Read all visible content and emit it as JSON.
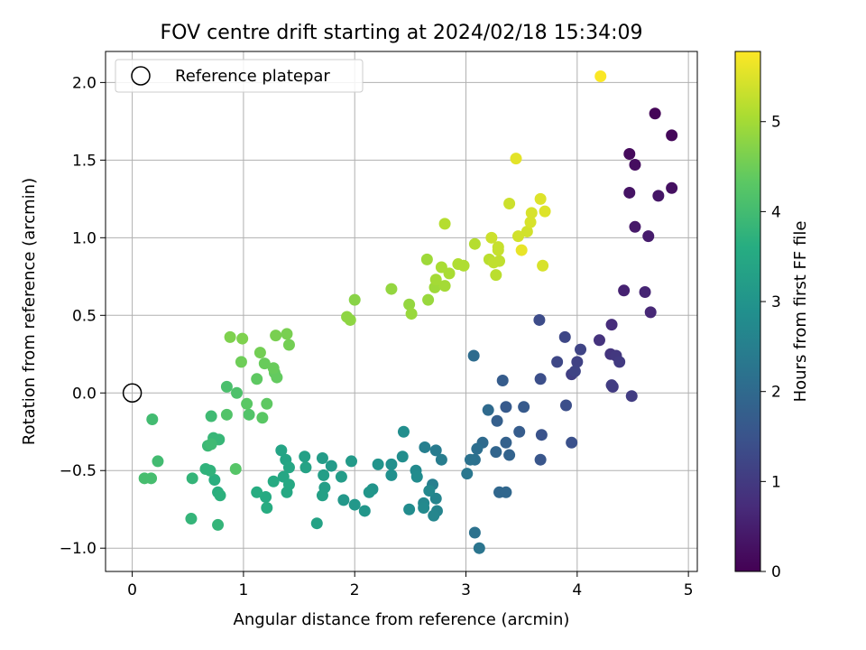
{
  "chart_data": {
    "type": "scatter",
    "title": "FOV centre drift starting at 2024/02/18 15:34:09",
    "xlabel": "Angular distance from reference (arcmin)",
    "ylabel": "Rotation from reference (arcmin)",
    "colorbar_label": "Hours from first FF file",
    "xlim": [
      -0.24,
      5.08
    ],
    "ylim": [
      -1.15,
      2.2
    ],
    "clim": [
      0,
      5.78
    ],
    "x_ticks": [
      0,
      1,
      2,
      3,
      4,
      5
    ],
    "y_ticks": [
      -1.0,
      -0.5,
      0.0,
      0.5,
      1.0,
      1.5,
      2.0
    ],
    "colorbar_ticks": [
      0,
      1,
      2,
      3,
      4,
      5
    ],
    "x_tick_labels": [
      "0",
      "1",
      "2",
      "3",
      "4",
      "5"
    ],
    "y_tick_labels": [
      "−1.0",
      "−0.5",
      "0.0",
      "0.5",
      "1.0",
      "1.5",
      "2.0"
    ],
    "colorbar_tick_labels": [
      "0",
      "1",
      "2",
      "3",
      "4",
      "5"
    ],
    "grid": true,
    "colormap": "viridis",
    "legend": {
      "placement": "upper-left",
      "entries": [
        {
          "label": "Reference platepar",
          "marker": "open-circle"
        }
      ]
    },
    "reference_point": {
      "x": 0.0,
      "y": 0.0
    },
    "points": [
      {
        "x": 4.7,
        "y": 1.8,
        "t": 0.05
      },
      {
        "x": 4.85,
        "y": 1.66,
        "t": 0.1
      },
      {
        "x": 4.47,
        "y": 1.54,
        "t": 0.15
      },
      {
        "x": 4.52,
        "y": 1.47,
        "t": 0.2
      },
      {
        "x": 4.85,
        "y": 1.32,
        "t": 0.25
      },
      {
        "x": 4.47,
        "y": 1.29,
        "t": 0.3
      },
      {
        "x": 4.73,
        "y": 1.27,
        "t": 0.35
      },
      {
        "x": 4.52,
        "y": 1.07,
        "t": 0.4
      },
      {
        "x": 4.64,
        "y": 1.01,
        "t": 0.45
      },
      {
        "x": 4.42,
        "y": 0.66,
        "t": 0.55
      },
      {
        "x": 4.61,
        "y": 0.65,
        "t": 0.6
      },
      {
        "x": 4.66,
        "y": 0.52,
        "t": 0.65
      },
      {
        "x": 4.31,
        "y": 0.44,
        "t": 0.75
      },
      {
        "x": 4.2,
        "y": 0.34,
        "t": 0.85
      },
      {
        "x": 4.3,
        "y": 0.25,
        "t": 0.9
      },
      {
        "x": 4.35,
        "y": 0.24,
        "t": 0.95
      },
      {
        "x": 4.38,
        "y": 0.2,
        "t": 1.0
      },
      {
        "x": 4.32,
        "y": 0.04,
        "t": 1.0
      },
      {
        "x": 4.31,
        "y": 0.05,
        "t": 1.05
      },
      {
        "x": 4.49,
        "y": -0.02,
        "t": 1.05
      },
      {
        "x": 3.95,
        "y": 0.12,
        "t": 1.1
      },
      {
        "x": 4.0,
        "y": 0.2,
        "t": 1.15
      },
      {
        "x": 3.98,
        "y": 0.14,
        "t": 1.2
      },
      {
        "x": 4.03,
        "y": 0.28,
        "t": 1.2
      },
      {
        "x": 3.89,
        "y": 0.36,
        "t": 1.25
      },
      {
        "x": 3.82,
        "y": 0.2,
        "t": 1.25
      },
      {
        "x": 3.66,
        "y": 0.47,
        "t": 1.35
      },
      {
        "x": 3.67,
        "y": 0.09,
        "t": 1.4
      },
      {
        "x": 3.9,
        "y": -0.08,
        "t": 1.4
      },
      {
        "x": 3.95,
        "y": -0.32,
        "t": 1.45
      },
      {
        "x": 3.68,
        "y": -0.27,
        "t": 1.5
      },
      {
        "x": 3.67,
        "y": -0.43,
        "t": 1.55
      },
      {
        "x": 3.52,
        "y": -0.09,
        "t": 1.65
      },
      {
        "x": 3.36,
        "y": -0.09,
        "t": 1.65
      },
      {
        "x": 3.48,
        "y": -0.25,
        "t": 1.7
      },
      {
        "x": 3.33,
        "y": 0.08,
        "t": 1.7
      },
      {
        "x": 3.28,
        "y": -0.18,
        "t": 1.75
      },
      {
        "x": 3.36,
        "y": -0.32,
        "t": 1.8
      },
      {
        "x": 3.39,
        "y": -0.4,
        "t": 1.85
      },
      {
        "x": 3.27,
        "y": -0.38,
        "t": 1.9
      },
      {
        "x": 3.3,
        "y": -0.64,
        "t": 1.95
      },
      {
        "x": 3.36,
        "y": -0.64,
        "t": 1.95
      },
      {
        "x": 3.2,
        "y": -0.11,
        "t": 2.0
      },
      {
        "x": 3.15,
        "y": -0.32,
        "t": 2.0
      },
      {
        "x": 3.07,
        "y": 0.24,
        "t": 2.05
      },
      {
        "x": 3.1,
        "y": -0.36,
        "t": 2.1
      },
      {
        "x": 3.08,
        "y": -0.43,
        "t": 2.15
      },
      {
        "x": 3.04,
        "y": -0.43,
        "t": 2.2
      },
      {
        "x": 3.08,
        "y": -0.9,
        "t": 2.2
      },
      {
        "x": 3.12,
        "y": -1.0,
        "t": 2.25
      },
      {
        "x": 3.01,
        "y": -0.52,
        "t": 2.3
      },
      {
        "x": 2.73,
        "y": -0.37,
        "t": 2.4
      },
      {
        "x": 2.78,
        "y": -0.43,
        "t": 2.45
      },
      {
        "x": 2.63,
        "y": -0.35,
        "t": 2.5
      },
      {
        "x": 2.7,
        "y": -0.59,
        "t": 2.5
      },
      {
        "x": 2.73,
        "y": -0.68,
        "t": 2.6
      },
      {
        "x": 2.74,
        "y": -0.76,
        "t": 2.6
      },
      {
        "x": 2.71,
        "y": -0.79,
        "t": 2.65
      },
      {
        "x": 2.67,
        "y": -0.63,
        "t": 2.7
      },
      {
        "x": 2.62,
        "y": -0.71,
        "t": 2.7
      },
      {
        "x": 2.62,
        "y": -0.74,
        "t": 2.75
      },
      {
        "x": 2.55,
        "y": -0.5,
        "t": 2.75
      },
      {
        "x": 2.56,
        "y": -0.54,
        "t": 2.8
      },
      {
        "x": 2.49,
        "y": -0.75,
        "t": 2.8
      },
      {
        "x": 2.44,
        "y": -0.25,
        "t": 2.85
      },
      {
        "x": 2.43,
        "y": -0.41,
        "t": 2.85
      },
      {
        "x": 2.33,
        "y": -0.46,
        "t": 2.9
      },
      {
        "x": 2.33,
        "y": -0.53,
        "t": 2.9
      },
      {
        "x": 2.21,
        "y": -0.46,
        "t": 3.0
      },
      {
        "x": 2.16,
        "y": -0.62,
        "t": 3.0
      },
      {
        "x": 2.13,
        "y": -0.64,
        "t": 3.05
      },
      {
        "x": 2.09,
        "y": -0.76,
        "t": 3.05
      },
      {
        "x": 2.0,
        "y": -0.72,
        "t": 3.1
      },
      {
        "x": 1.9,
        "y": -0.69,
        "t": 3.1
      },
      {
        "x": 1.97,
        "y": -0.44,
        "t": 3.15
      },
      {
        "x": 1.79,
        "y": -0.47,
        "t": 3.15
      },
      {
        "x": 1.88,
        "y": -0.54,
        "t": 3.2
      },
      {
        "x": 1.71,
        "y": -0.42,
        "t": 3.2
      },
      {
        "x": 1.72,
        "y": -0.53,
        "t": 3.25
      },
      {
        "x": 1.73,
        "y": -0.61,
        "t": 3.25
      },
      {
        "x": 1.71,
        "y": -0.66,
        "t": 3.3
      },
      {
        "x": 1.55,
        "y": -0.41,
        "t": 3.3
      },
      {
        "x": 1.56,
        "y": -0.48,
        "t": 3.35
      },
      {
        "x": 1.66,
        "y": -0.84,
        "t": 3.35
      },
      {
        "x": 1.34,
        "y": -0.37,
        "t": 3.4
      },
      {
        "x": 1.38,
        "y": -0.43,
        "t": 3.4
      },
      {
        "x": 1.41,
        "y": -0.48,
        "t": 3.45
      },
      {
        "x": 1.36,
        "y": -0.54,
        "t": 3.45
      },
      {
        "x": 1.41,
        "y": -0.59,
        "t": 3.5
      },
      {
        "x": 1.39,
        "y": -0.64,
        "t": 3.5
      },
      {
        "x": 1.27,
        "y": -0.57,
        "t": 3.55
      },
      {
        "x": 1.2,
        "y": -0.67,
        "t": 3.55
      },
      {
        "x": 1.12,
        "y": -0.64,
        "t": 3.6
      },
      {
        "x": 1.21,
        "y": -0.74,
        "t": 3.6
      },
      {
        "x": 0.74,
        "y": -0.56,
        "t": 3.65
      },
      {
        "x": 0.77,
        "y": -0.64,
        "t": 3.65
      },
      {
        "x": 0.79,
        "y": -0.66,
        "t": 3.7
      },
      {
        "x": 0.7,
        "y": -0.5,
        "t": 3.75
      },
      {
        "x": 0.66,
        "y": -0.49,
        "t": 3.75
      },
      {
        "x": 0.54,
        "y": -0.55,
        "t": 3.8
      },
      {
        "x": 0.53,
        "y": -0.81,
        "t": 3.8
      },
      {
        "x": 0.77,
        "y": -0.85,
        "t": 3.8
      },
      {
        "x": 0.73,
        "y": -0.29,
        "t": 3.85
      },
      {
        "x": 0.78,
        "y": -0.3,
        "t": 3.85
      },
      {
        "x": 0.68,
        "y": -0.34,
        "t": 3.9
      },
      {
        "x": 0.71,
        "y": -0.33,
        "t": 3.95
      },
      {
        "x": 0.71,
        "y": -0.15,
        "t": 3.95
      },
      {
        "x": 0.18,
        "y": -0.17,
        "t": 4.0
      },
      {
        "x": 0.23,
        "y": -0.44,
        "t": 4.0
      },
      {
        "x": 0.11,
        "y": -0.55,
        "t": 4.05
      },
      {
        "x": 0.17,
        "y": -0.55,
        "t": 4.05
      },
      {
        "x": 0.85,
        "y": 0.04,
        "t": 4.1
      },
      {
        "x": 0.94,
        "y": 0.0,
        "t": 4.15
      },
      {
        "x": 1.05,
        "y": -0.14,
        "t": 4.2
      },
      {
        "x": 0.85,
        "y": -0.14,
        "t": 4.2
      },
      {
        "x": 0.93,
        "y": -0.49,
        "t": 4.25
      },
      {
        "x": 1.03,
        "y": -0.07,
        "t": 4.3
      },
      {
        "x": 1.17,
        "y": -0.16,
        "t": 4.3
      },
      {
        "x": 1.21,
        "y": -0.07,
        "t": 4.35
      },
      {
        "x": 1.12,
        "y": 0.09,
        "t": 4.35
      },
      {
        "x": 1.28,
        "y": 0.13,
        "t": 4.4
      },
      {
        "x": 1.3,
        "y": 0.1,
        "t": 4.4
      },
      {
        "x": 1.27,
        "y": 0.16,
        "t": 4.45
      },
      {
        "x": 1.19,
        "y": 0.19,
        "t": 4.45
      },
      {
        "x": 0.98,
        "y": 0.2,
        "t": 4.5
      },
      {
        "x": 1.15,
        "y": 0.26,
        "t": 4.55
      },
      {
        "x": 1.41,
        "y": 0.31,
        "t": 4.55
      },
      {
        "x": 1.29,
        "y": 0.37,
        "t": 4.6
      },
      {
        "x": 1.39,
        "y": 0.38,
        "t": 4.6
      },
      {
        "x": 0.88,
        "y": 0.36,
        "t": 4.65
      },
      {
        "x": 0.99,
        "y": 0.35,
        "t": 4.65
      },
      {
        "x": 2.0,
        "y": 0.6,
        "t": 4.75
      },
      {
        "x": 1.93,
        "y": 0.49,
        "t": 4.8
      },
      {
        "x": 1.96,
        "y": 0.47,
        "t": 4.8
      },
      {
        "x": 2.33,
        "y": 0.67,
        "t": 4.85
      },
      {
        "x": 2.49,
        "y": 0.57,
        "t": 4.85
      },
      {
        "x": 2.51,
        "y": 0.51,
        "t": 4.9
      },
      {
        "x": 2.66,
        "y": 0.6,
        "t": 4.9
      },
      {
        "x": 2.65,
        "y": 0.86,
        "t": 4.95
      },
      {
        "x": 2.72,
        "y": 0.68,
        "t": 4.95
      },
      {
        "x": 2.73,
        "y": 0.73,
        "t": 5.0
      },
      {
        "x": 2.81,
        "y": 0.69,
        "t": 5.0
      },
      {
        "x": 2.85,
        "y": 0.77,
        "t": 5.05
      },
      {
        "x": 2.78,
        "y": 0.81,
        "t": 5.05
      },
      {
        "x": 2.98,
        "y": 0.82,
        "t": 5.1
      },
      {
        "x": 2.93,
        "y": 0.83,
        "t": 5.1
      },
      {
        "x": 2.81,
        "y": 1.09,
        "t": 5.15
      },
      {
        "x": 3.08,
        "y": 0.96,
        "t": 5.15
      },
      {
        "x": 3.21,
        "y": 0.86,
        "t": 5.2
      },
      {
        "x": 3.27,
        "y": 0.76,
        "t": 5.2
      },
      {
        "x": 3.25,
        "y": 0.84,
        "t": 5.25
      },
      {
        "x": 3.3,
        "y": 0.85,
        "t": 5.25
      },
      {
        "x": 3.29,
        "y": 0.94,
        "t": 5.3
      },
      {
        "x": 3.29,
        "y": 0.92,
        "t": 5.3
      },
      {
        "x": 3.23,
        "y": 1.0,
        "t": 5.35
      },
      {
        "x": 3.39,
        "y": 1.22,
        "t": 5.35
      },
      {
        "x": 3.47,
        "y": 1.01,
        "t": 5.4
      },
      {
        "x": 3.55,
        "y": 1.04,
        "t": 5.4
      },
      {
        "x": 3.58,
        "y": 1.1,
        "t": 5.45
      },
      {
        "x": 3.59,
        "y": 1.16,
        "t": 5.45
      },
      {
        "x": 3.69,
        "y": 0.82,
        "t": 5.45
      },
      {
        "x": 3.67,
        "y": 1.25,
        "t": 5.5
      },
      {
        "x": 3.71,
        "y": 1.17,
        "t": 5.5
      },
      {
        "x": 3.45,
        "y": 1.51,
        "t": 5.55
      },
      {
        "x": 3.5,
        "y": 0.92,
        "t": 5.6
      },
      {
        "x": 4.21,
        "y": 2.04,
        "t": 5.75
      }
    ]
  }
}
